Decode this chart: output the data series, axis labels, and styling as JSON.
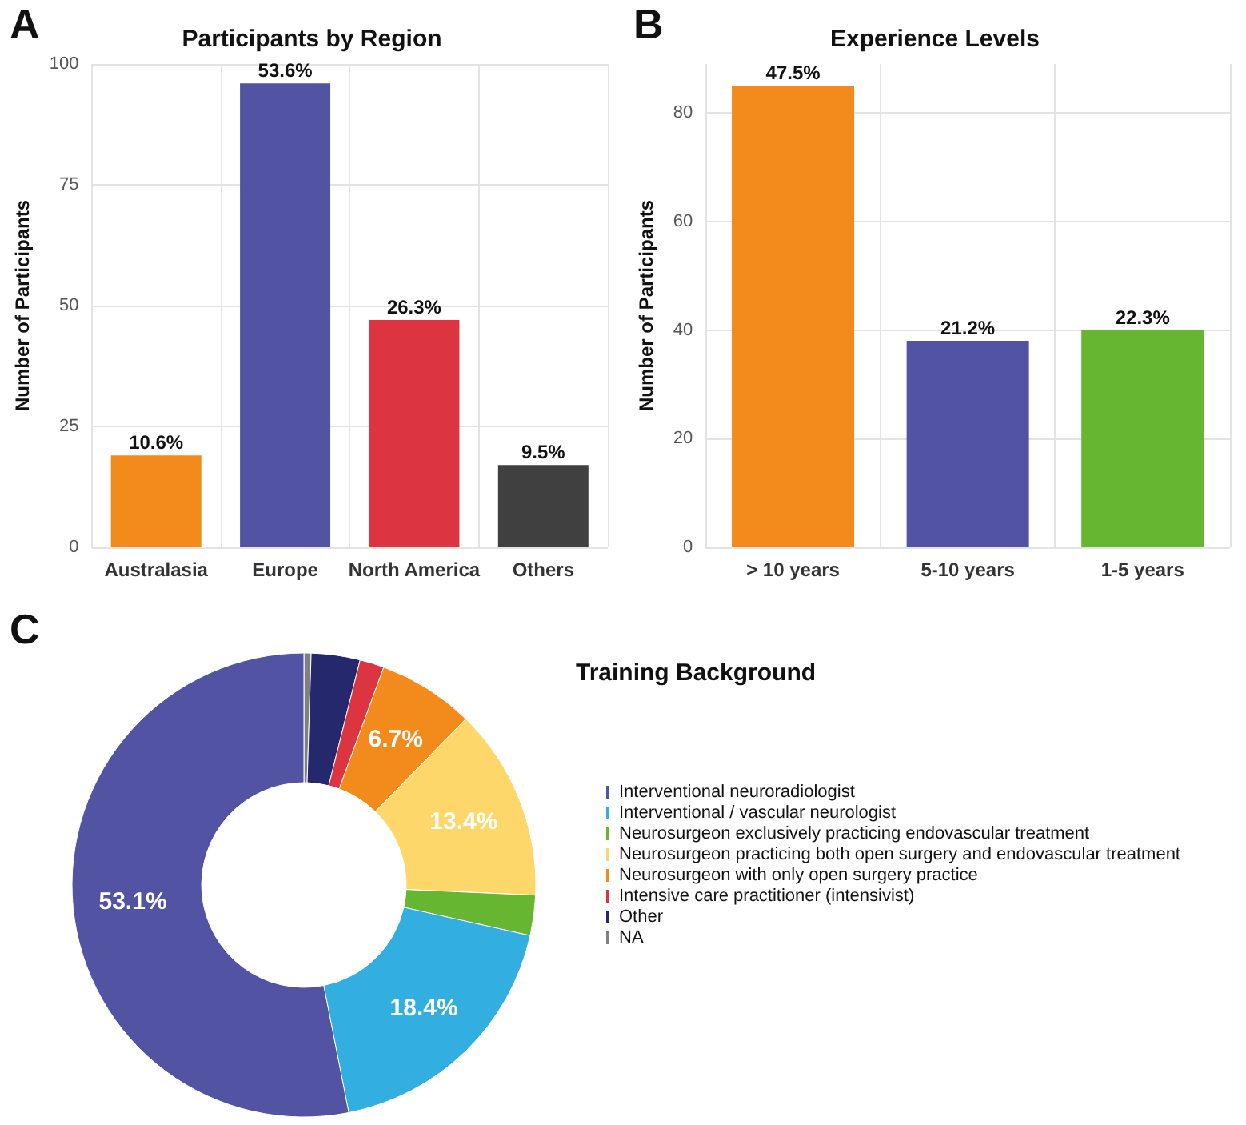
{
  "chart_data": [
    {
      "type": "bar",
      "title": "Participants by Region",
      "ylabel": "Number of Participants",
      "annotations": [
        "A",
        {
          "text": "10.6%",
          "x": "Australasia",
          "y": 19
        },
        {
          "text": "53.6%",
          "x": "Europe",
          "y": 96
        },
        {
          "text": "26.3%",
          "x": "North America",
          "y": 47
        },
        {
          "text": "9.5%",
          "x": "Others",
          "y": 17
        }
      ],
      "categories": [
        "Australasia",
        "Europe",
        "North America",
        "Others"
      ],
      "values": [
        19,
        96,
        47,
        17
      ],
      "colors": [
        "#f28a1c",
        "#5254a3",
        "#dc3440",
        "#404040"
      ],
      "ylim": [
        0,
        100
      ],
      "yticks": [
        0,
        25,
        50,
        75,
        100
      ],
      "grid": true,
      "legend": false
    },
    {
      "type": "bar",
      "title": "Experience Levels",
      "ylabel": "Number of Participants",
      "annotations": [
        "B",
        {
          "text": "47.5%",
          "x": "> 10 years",
          "y": 85
        },
        {
          "text": "21.2%",
          "x": "5-10 years",
          "y": 38
        },
        {
          "text": "22.3%",
          "x": "1-5 years",
          "y": 40
        }
      ],
      "categories": [
        "> 10 years",
        "5-10 years",
        "1-5 years"
      ],
      "values": [
        85,
        38,
        40
      ],
      "colors": [
        "#f28a1c",
        "#5254a3",
        "#66b632"
      ],
      "ylim": [
        0,
        89
      ],
      "yticks": [
        0,
        20,
        40,
        60,
        80
      ],
      "grid": true,
      "legend": false
    },
    {
      "type": "donut",
      "title": "Training Background",
      "annotations": [
        "C"
      ],
      "categories": [
        "Interventional neuroradiologist",
        "Interventional / vascular neurologist",
        "Neurosurgeon exclusively practicing endovascular treatment",
        "Neurosurgeon practicing both open surgery and endovascular treatment",
        "Neurosurgeon with only open surgery practice",
        "Intensive care practitioner (intensivist)",
        "Other",
        "NA"
      ],
      "values": [
        53.1,
        18.4,
        2.8,
        13.4,
        6.7,
        1.7,
        3.4,
        0.5
      ],
      "colors": [
        "#5254a3",
        "#33aee0",
        "#66b632",
        "#fdd76a",
        "#f28a1c",
        "#dc3440",
        "#26286e",
        "#808080"
      ],
      "value_labels": [
        "53.1%",
        "18.4%",
        null,
        "13.4%",
        "6.7%",
        null,
        null,
        null
      ],
      "legend": "right"
    }
  ]
}
